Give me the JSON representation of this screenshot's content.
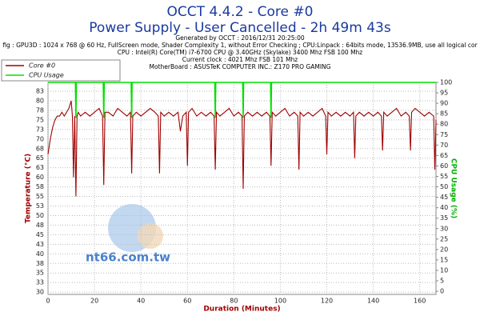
{
  "chart_data": {
    "type": "line",
    "title": "OCCT 4.4.2 - Core #0",
    "subtitle": "Power Supply - User Cancelled - 2h 49m 43s",
    "info": [
      "Generated by OCCT : 2016/12/31 20:25:00",
      "fig : GPU3D : 1024 x 768 @ 60 Hz, FullScreen mode, Shader Complexity 1, without Error Checking ; CPU:Linpack : 64bits mode, 13536.9MB, use all logical cor",
      "CPU : Intel(R) Core(TM) i7-6700 CPU @ 3.40GHz (Skylake) 3400 Mhz FSB 100 Mhz",
      "Current clock : 4021 Mhz FSB 101 Mhz",
      "MotherBoard : ASUSTeK COMPUTER INC.: Z170 PRO GAMING"
    ],
    "x_label": "Duration (Minutes)",
    "y_label": "Temperature (°C)",
    "y2_label": "CPU Usage (%)",
    "watermark": "nt66.com.tw",
    "grid": true,
    "legend": "top-left",
    "xlim": [
      0,
      167
    ],
    "xticks": [
      0,
      20,
      40,
      60,
      80,
      100,
      120,
      140,
      160
    ],
    "ylim": [
      29.4,
      84.8
    ],
    "yticks": [
      30,
      {
        "value": 32.5,
        "label": "33"
      },
      35,
      {
        "value": 37.5,
        "label": "38"
      },
      40,
      {
        "value": 42.5,
        "label": "43"
      },
      45,
      {
        "value": 47.5,
        "label": "48"
      },
      50,
      {
        "value": 52.5,
        "label": "53"
      },
      55,
      {
        "value": 57.5,
        "label": "58"
      },
      60,
      {
        "value": 62.5,
        "label": "63"
      },
      65,
      {
        "value": 67.5,
        "label": "68"
      },
      70,
      {
        "value": 72.5,
        "label": "73"
      },
      75,
      {
        "value": 77.5,
        "label": "78"
      },
      80,
      {
        "value": 82.5,
        "label": "83"
      }
    ],
    "y2lim": [
      -1.5,
      100
    ],
    "y2ticks": [
      0,
      5,
      10,
      15,
      20,
      25,
      30,
      35,
      40,
      45,
      50,
      55,
      60,
      65,
      70,
      75,
      80,
      85,
      90,
      95,
      100
    ],
    "series": [
      {
        "name": "Core #0",
        "color": "#a00000",
        "x": [
          0,
          1,
          2,
          3,
          4,
          5,
          6,
          7,
          8,
          9,
          10,
          10.5,
          11,
          11.5,
          12,
          12.5,
          13,
          14,
          16,
          18,
          20,
          22,
          23.5,
          24,
          24.5,
          26,
          28,
          30,
          32,
          34,
          35.5,
          36,
          36.5,
          38,
          40,
          42,
          44,
          46,
          47.5,
          48,
          48.5,
          50,
          52,
          54,
          56,
          57,
          58,
          59.5,
          60,
          60.5,
          62,
          64,
          66,
          68,
          70,
          71.5,
          72,
          72.5,
          74,
          76,
          78,
          80,
          82,
          83.5,
          84,
          84.5,
          86,
          88,
          90,
          92,
          94,
          95.5,
          96,
          96.5,
          98,
          100,
          102,
          104,
          106,
          107.5,
          108,
          108.5,
          110,
          112,
          114,
          116,
          118,
          119.5,
          120,
          120.5,
          122,
          124,
          126,
          128,
          130,
          131.5,
          132,
          132.5,
          134,
          136,
          138,
          140,
          142,
          143.5,
          144,
          144.5,
          146,
          148,
          150,
          152,
          154,
          155.5,
          156,
          156.5,
          158,
          160,
          162,
          164,
          166,
          166.5,
          167
        ],
        "values": [
          66,
          70,
          73,
          75,
          76,
          76,
          77,
          76,
          77,
          78,
          80,
          76,
          60,
          76,
          55,
          76,
          77,
          76,
          77,
          76,
          77,
          78,
          76,
          58,
          77,
          77,
          76,
          78,
          77,
          76,
          77,
          61,
          76,
          77,
          76,
          77,
          78,
          77,
          76,
          61,
          77,
          76,
          77,
          76,
          77,
          72,
          76,
          77,
          63,
          77,
          78,
          76,
          77,
          76,
          77,
          76,
          62,
          77,
          76,
          77,
          78,
          76,
          77,
          76,
          57,
          76,
          77,
          76,
          77,
          76,
          77,
          76,
          63,
          77,
          76,
          77,
          78,
          76,
          77,
          76,
          62,
          77,
          76,
          77,
          76,
          77,
          78,
          76,
          66,
          77,
          76,
          77,
          76,
          77,
          76,
          77,
          65,
          76,
          77,
          76,
          77,
          76,
          77,
          76,
          67,
          77,
          76,
          77,
          78,
          76,
          77,
          76,
          67,
          77,
          78,
          77,
          76,
          77,
          76,
          62,
          75
        ]
      },
      {
        "name": "CPU Usage",
        "color": "#00e000",
        "axis": "y2",
        "x": [
          0,
          11.8,
          12,
          12.2,
          23.8,
          24,
          24.2,
          35.8,
          36,
          36.2,
          71.8,
          72,
          72.2,
          83.8,
          84,
          84.2,
          95.8,
          96,
          96.2,
          167
        ],
        "values": [
          100,
          100,
          83,
          100,
          100,
          83,
          100,
          100,
          83,
          100,
          100,
          83,
          100,
          100,
          83,
          100,
          100,
          83,
          100,
          100
        ]
      }
    ]
  }
}
